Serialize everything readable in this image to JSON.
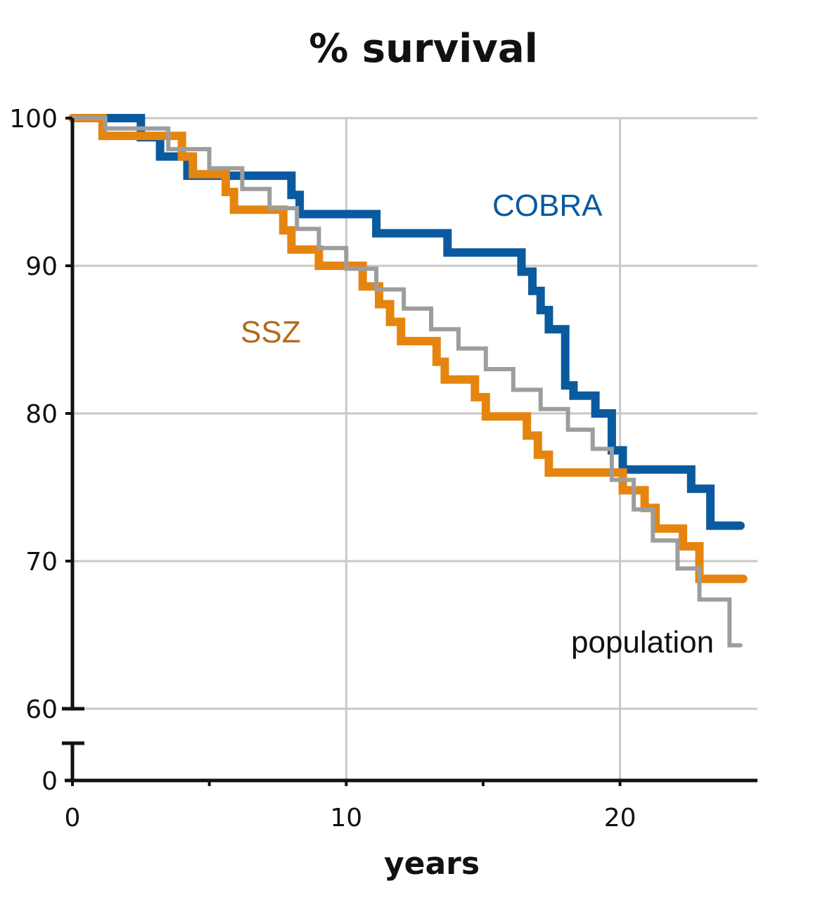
{
  "chart_data": {
    "type": "line",
    "step": true,
    "title": "% survival",
    "xlabel": "years",
    "ylabel": "",
    "xlim": [
      0,
      25
    ],
    "x_ticks": [
      0,
      10,
      20
    ],
    "y_ticks": [
      60,
      70,
      80,
      90,
      100
    ],
    "y_break_ticks": [
      0
    ],
    "ylim": [
      60,
      100
    ],
    "axis_break": "y axis broken between 0 and 60",
    "grid": true,
    "legend": "inline labels",
    "series": [
      {
        "name": "COBRA",
        "color": "#0a5aa0",
        "x": [
          0,
          2.5,
          2.5,
          3.2,
          3.2,
          4.2,
          4.2,
          6,
          6,
          8,
          8,
          8.3,
          8.3,
          8.6,
          8.6,
          11.1,
          11.1,
          11.4,
          11.4,
          13.7,
          13.7,
          16.4,
          16.4,
          16.8,
          16.8,
          17.1,
          17.1,
          17.4,
          17.4,
          18,
          18,
          18.3,
          18.3,
          19.1,
          19.1,
          19.7,
          19.7,
          20.1,
          20.1,
          20.5,
          20.5,
          22.6,
          22.6,
          23.3,
          23.3,
          24.4
        ],
        "values": [
          100,
          100,
          98.7,
          98.7,
          97.4,
          97.4,
          96.1,
          96.1,
          96.1,
          96.1,
          94.8,
          94.8,
          93.5,
          93.5,
          93.5,
          93.5,
          92.2,
          92.2,
          92.2,
          92.2,
          90.9,
          90.9,
          89.6,
          89.6,
          88.3,
          88.3,
          87,
          87,
          85.7,
          85.7,
          81.9,
          81.9,
          81.2,
          81.2,
          80,
          80,
          77.5,
          77.5,
          76.2,
          76.2,
          76.2,
          76.2,
          74.9,
          74.9,
          72.4,
          72.4
        ]
      },
      {
        "name": "SSZ",
        "color": "#e5850f",
        "x": [
          0,
          1.1,
          1.1,
          4,
          4,
          4.4,
          4.4,
          5.6,
          5.6,
          5.9,
          5.9,
          7.7,
          7.7,
          8,
          8,
          9,
          9,
          10.6,
          10.6,
          11.2,
          11.2,
          11.6,
          11.6,
          12,
          12,
          13.3,
          13.3,
          13.6,
          13.6,
          14.7,
          14.7,
          15.1,
          15.1,
          16.6,
          16.6,
          17,
          17,
          17.4,
          17.4,
          20.1,
          20.1,
          20.9,
          20.9,
          21.3,
          21.3,
          22.3,
          22.3,
          22.9,
          22.9,
          24.5
        ],
        "values": [
          100,
          100,
          98.8,
          98.8,
          97.4,
          97.4,
          96.2,
          96.2,
          95,
          95,
          93.8,
          93.8,
          92.4,
          92.4,
          91.1,
          91.1,
          90,
          90,
          88.6,
          88.6,
          87.4,
          87.4,
          86.2,
          86.2,
          84.9,
          84.9,
          83.5,
          83.5,
          82.3,
          82.3,
          81.1,
          81.1,
          79.8,
          79.8,
          78.5,
          78.5,
          77.2,
          77.2,
          76,
          76,
          74.8,
          74.8,
          73.6,
          73.6,
          72.2,
          72.2,
          71,
          71,
          68.8,
          68.8
        ]
      },
      {
        "name": "population",
        "color": "#9d9d9d",
        "x": [
          0,
          1.2,
          1.2,
          3.5,
          3.5,
          5,
          5,
          6.2,
          6.2,
          7.2,
          7.2,
          8.2,
          8.2,
          9,
          9,
          10,
          10,
          11.1,
          11.1,
          12.1,
          12.1,
          13.1,
          13.1,
          14.1,
          14.1,
          15.1,
          15.1,
          16.1,
          16.1,
          17.1,
          17.1,
          18.1,
          18.1,
          19,
          19,
          19.7,
          19.7,
          20.5,
          20.5,
          21.2,
          21.2,
          22.1,
          22.1,
          22.9,
          22.9,
          24,
          24,
          24.4
        ],
        "values": [
          100,
          100,
          99.3,
          99.3,
          97.9,
          97.9,
          96.6,
          96.6,
          95.2,
          95.2,
          93.9,
          93.9,
          92.5,
          92.5,
          91.2,
          91.2,
          89.8,
          89.8,
          88.4,
          88.4,
          87.1,
          87.1,
          85.7,
          85.7,
          84.4,
          84.4,
          83,
          83,
          81.6,
          81.6,
          80.3,
          80.3,
          78.9,
          78.9,
          77.6,
          77.6,
          75.5,
          75.5,
          73.5,
          73.5,
          71.4,
          71.4,
          69.5,
          69.5,
          67.4,
          67.4,
          64.3,
          64.3
        ]
      }
    ]
  }
}
